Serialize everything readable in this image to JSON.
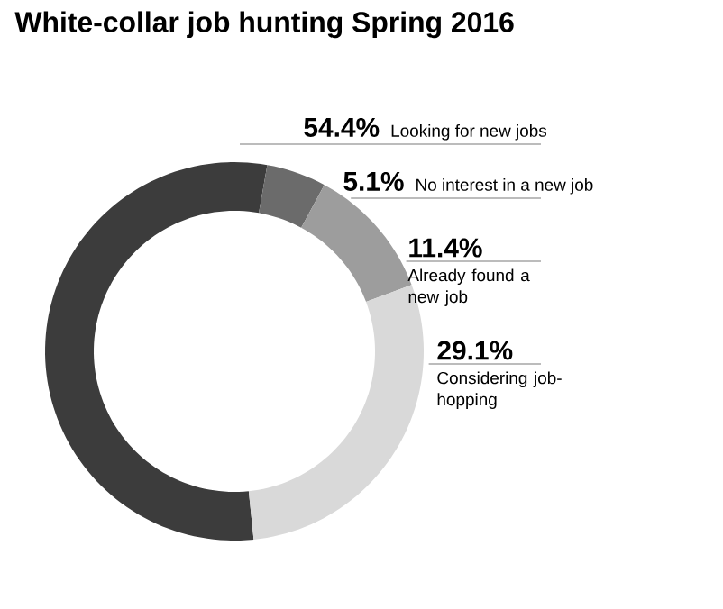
{
  "chart_data": {
    "type": "donut",
    "title": "White-collar job hunting Spring 2016",
    "categories": [
      "Looking for new jobs",
      "No interest in a new job",
      "Already found a new job",
      "Considering job-hopping"
    ],
    "values": [
      54.4,
      5.1,
      11.4,
      29.1
    ],
    "value_labels": [
      "54.4%",
      "5.1%",
      "11.4%",
      "29.1%"
    ],
    "colors": [
      "#3c3c3c",
      "#6b6b6b",
      "#9d9d9d",
      "#d9d9d9"
    ]
  }
}
